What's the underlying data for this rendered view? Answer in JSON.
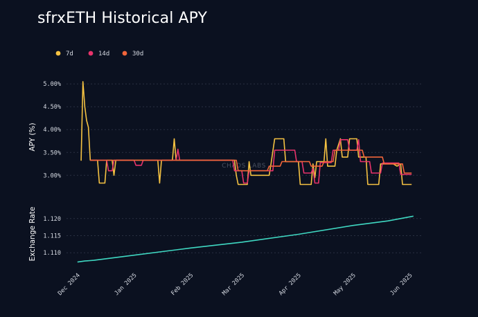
{
  "title": "sfrxETH Historical APY",
  "watermark": "CHAOS LABS",
  "chart_data": [
    {
      "type": "line",
      "title": "sfrxETH Historical APY",
      "ylabel": "APY (%)",
      "xlabel": "",
      "ylim": [
        2.55,
        5.2
      ],
      "yticks": [
        "3.00%",
        "3.50%",
        "4.00%",
        "4.50%",
        "5.00%"
      ],
      "ytick_values": [
        3.0,
        3.5,
        4.0,
        4.5,
        5.0
      ],
      "legend": "top-left",
      "grid": "horizontal dotted",
      "series": [
        {
          "name": "7d",
          "color": "#f5c242",
          "points": [
            [
              "2024-12-03",
              3.32
            ],
            [
              "2024-12-04",
              5.05
            ],
            [
              "2024-12-05",
              4.5
            ],
            [
              "2024-12-06",
              4.2
            ],
            [
              "2024-12-07",
              4.05
            ],
            [
              "2024-12-08",
              3.33
            ],
            [
              "2024-12-12",
              3.33
            ],
            [
              "2024-12-13",
              2.83
            ],
            [
              "2024-12-16",
              2.83
            ],
            [
              "2024-12-17",
              3.33
            ],
            [
              "2024-12-20",
              3.33
            ],
            [
              "2024-12-21",
              3.0
            ],
            [
              "2024-12-22",
              3.33
            ],
            [
              "2025-01-14",
              3.33
            ],
            [
              "2025-01-15",
              2.83
            ],
            [
              "2025-01-16",
              3.33
            ],
            [
              "2025-01-22",
              3.33
            ],
            [
              "2025-01-23",
              3.8
            ],
            [
              "2025-01-24",
              3.33
            ],
            [
              "2025-02-25",
              3.33
            ],
            [
              "2025-02-26",
              3.0
            ],
            [
              "2025-02-27",
              2.8
            ],
            [
              "2025-03-04",
              2.8
            ],
            [
              "2025-03-05",
              3.3
            ],
            [
              "2025-03-06",
              3.0
            ],
            [
              "2025-03-16",
              3.0
            ],
            [
              "2025-03-17",
              3.25
            ],
            [
              "2025-03-19",
              3.8
            ],
            [
              "2025-03-24",
              3.8
            ],
            [
              "2025-03-25",
              3.3
            ],
            [
              "2025-04-01",
              3.3
            ],
            [
              "2025-04-02",
              2.8
            ],
            [
              "2025-04-08",
              2.8
            ],
            [
              "2025-04-09",
              3.25
            ],
            [
              "2025-04-10",
              2.95
            ],
            [
              "2025-04-11",
              3.3
            ],
            [
              "2025-04-15",
              3.3
            ],
            [
              "2025-04-16",
              3.8
            ],
            [
              "2025-04-17",
              3.2
            ],
            [
              "2025-04-21",
              3.2
            ],
            [
              "2025-04-22",
              3.55
            ],
            [
              "2025-04-24",
              3.8
            ],
            [
              "2025-04-25",
              3.4
            ],
            [
              "2025-04-28",
              3.4
            ],
            [
              "2025-04-29",
              3.8
            ],
            [
              "2025-05-03",
              3.8
            ],
            [
              "2025-05-04",
              3.4
            ],
            [
              "2025-05-08",
              3.4
            ],
            [
              "2025-05-09",
              2.8
            ],
            [
              "2025-05-15",
              2.8
            ],
            [
              "2025-05-16",
              3.25
            ],
            [
              "2025-05-23",
              3.25
            ],
            [
              "2025-05-25",
              3.2
            ],
            [
              "2025-05-27",
              3.25
            ],
            [
              "2025-05-28",
              2.8
            ],
            [
              "2025-06-02",
              2.8
            ]
          ]
        },
        {
          "name": "14d",
          "color": "#e8336b",
          "points": [
            [
              "2024-12-08",
              3.33
            ],
            [
              "2024-12-17",
              3.33
            ],
            [
              "2024-12-18",
              3.1
            ],
            [
              "2024-12-20",
              3.1
            ],
            [
              "2024-12-21",
              3.33
            ],
            [
              "2025-01-01",
              3.33
            ],
            [
              "2025-01-02",
              3.22
            ],
            [
              "2025-01-05",
              3.22
            ],
            [
              "2025-01-06",
              3.33
            ],
            [
              "2025-01-24",
              3.33
            ],
            [
              "2025-01-25",
              3.57
            ],
            [
              "2025-01-26",
              3.33
            ],
            [
              "2025-02-24",
              3.33
            ],
            [
              "2025-02-25",
              3.1
            ],
            [
              "2025-03-01",
              3.1
            ],
            [
              "2025-03-02",
              2.83
            ],
            [
              "2025-03-04",
              2.83
            ],
            [
              "2025-03-05",
              3.1
            ],
            [
              "2025-03-18",
              3.1
            ],
            [
              "2025-03-19",
              3.55
            ],
            [
              "2025-03-30",
              3.55
            ],
            [
              "2025-03-31",
              3.3
            ],
            [
              "2025-04-03",
              3.3
            ],
            [
              "2025-04-04",
              3.05
            ],
            [
              "2025-04-08",
              3.05
            ],
            [
              "2025-04-09",
              3.15
            ],
            [
              "2025-04-10",
              2.83
            ],
            [
              "2025-04-12",
              2.83
            ],
            [
              "2025-04-13",
              3.28
            ],
            [
              "2025-04-19",
              3.28
            ],
            [
              "2025-04-20",
              3.55
            ],
            [
              "2025-04-23",
              3.55
            ],
            [
              "2025-04-24",
              3.78
            ],
            [
              "2025-04-28",
              3.78
            ],
            [
              "2025-04-29",
              3.55
            ],
            [
              "2025-05-03",
              3.55
            ],
            [
              "2025-05-04",
              3.78
            ],
            [
              "2025-05-05",
              3.3
            ],
            [
              "2025-05-10",
              3.3
            ],
            [
              "2025-05-11",
              3.05
            ],
            [
              "2025-05-16",
              3.05
            ],
            [
              "2025-05-17",
              3.27
            ],
            [
              "2025-05-26",
              3.27
            ],
            [
              "2025-05-27",
              3.02
            ],
            [
              "2025-06-02",
              3.02
            ]
          ]
        },
        {
          "name": "30d",
          "color": "#f2653a",
          "points": [
            [
              "2024-12-08",
              3.33
            ],
            [
              "2025-02-26",
              3.33
            ],
            [
              "2025-02-27",
              3.1
            ],
            [
              "2025-03-15",
              3.1
            ],
            [
              "2025-03-16",
              3.2
            ],
            [
              "2025-03-22",
              3.2
            ],
            [
              "2025-03-23",
              3.3
            ],
            [
              "2025-04-07",
              3.3
            ],
            [
              "2025-04-08",
              3.2
            ],
            [
              "2025-04-14",
              3.2
            ],
            [
              "2025-04-15",
              3.3
            ],
            [
              "2025-04-20",
              3.3
            ],
            [
              "2025-04-21",
              3.55
            ],
            [
              "2025-05-06",
              3.55
            ],
            [
              "2025-05-07",
              3.4
            ],
            [
              "2025-05-17",
              3.4
            ],
            [
              "2025-05-18",
              3.25
            ],
            [
              "2025-05-28",
              3.25
            ],
            [
              "2025-05-29",
              3.05
            ],
            [
              "2025-06-02",
              3.05
            ]
          ]
        }
      ]
    },
    {
      "type": "line",
      "ylabel": "Exchange Rate",
      "xlabel": "",
      "ylim": [
        1.106,
        1.124
      ],
      "yticks": [
        "1.110",
        "1.115",
        "1.120"
      ],
      "ytick_values": [
        1.11,
        1.115,
        1.12
      ],
      "xticks": [
        "Dec 2024",
        "Jan 2025",
        "Feb 2025",
        "Mar 2025",
        "Apr 2025",
        "May 2025",
        "Jun 2025"
      ],
      "xtick_dates": [
        "2024-12-01",
        "2025-01-01",
        "2025-02-01",
        "2025-03-01",
        "2025-04-01",
        "2025-05-01",
        "2025-06-01"
      ],
      "xlim": [
        "2024-11-25",
        "2025-06-08"
      ],
      "grid": "horizontal dotted",
      "series": [
        {
          "name": "",
          "color": "#3fd8c2",
          "points": [
            [
              "2024-12-01",
              1.1073
            ],
            [
              "2024-12-05",
              1.1076
            ],
            [
              "2024-12-10",
              1.1078
            ],
            [
              "2025-01-01",
              1.1093
            ],
            [
              "2025-02-01",
              1.1114
            ],
            [
              "2025-03-01",
              1.1131
            ],
            [
              "2025-04-01",
              1.1154
            ],
            [
              "2025-05-01",
              1.118
            ],
            [
              "2025-05-20",
              1.1193
            ],
            [
              "2025-06-03",
              1.1207
            ]
          ]
        }
      ]
    }
  ]
}
